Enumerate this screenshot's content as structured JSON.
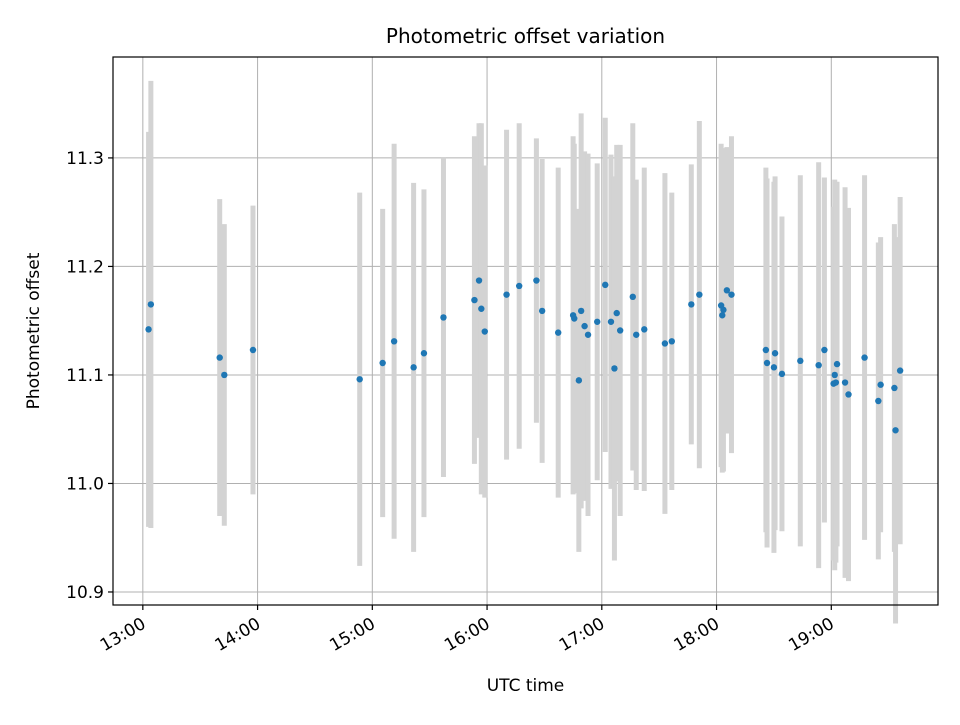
{
  "chart_data": {
    "type": "scatter",
    "title": "Photometric offset variation",
    "xlabel": "UTC time",
    "ylabel": "Photometric offset",
    "x_tick_labels": [
      "13:00",
      "14:00",
      "15:00",
      "16:00",
      "17:00",
      "18:00",
      "19:00"
    ],
    "x_tick_values": [
      13.0,
      14.0,
      15.0,
      16.0,
      17.0,
      18.0,
      19.0
    ],
    "y_tick_labels": [
      "10.9",
      "11.0",
      "11.1",
      "11.2",
      "11.3"
    ],
    "y_tick_values": [
      10.9,
      11.0,
      11.1,
      11.2,
      11.3
    ],
    "xlim": [
      12.74,
      19.93
    ],
    "ylim": [
      10.888,
      11.393
    ],
    "grid": true,
    "colors": {
      "marker": "#1f77b4",
      "errorbar": "#d3d3d3",
      "grid": "#b0b0b0"
    },
    "series": [
      {
        "x": [
          13.05,
          13.07,
          13.67,
          13.71,
          13.96,
          14.89,
          15.09,
          15.19,
          15.36,
          15.45,
          15.62,
          15.89,
          15.93,
          15.95,
          15.98,
          16.17,
          16.28,
          16.43,
          16.48,
          16.62,
          16.75,
          16.76,
          16.8,
          16.82,
          16.85,
          16.88,
          16.96,
          17.03,
          17.08,
          17.11,
          17.13,
          17.16,
          17.27,
          17.3,
          17.37,
          17.55,
          17.61,
          17.78,
          17.85,
          18.04,
          18.05,
          18.06,
          18.09,
          18.13,
          18.43,
          18.44,
          18.5,
          18.51,
          18.57,
          18.73,
          18.89,
          18.94,
          19.02,
          19.03,
          19.04,
          19.05,
          19.12,
          19.15,
          19.29,
          19.41,
          19.43,
          19.55,
          19.56,
          19.6
        ],
        "y": [
          11.142,
          11.165,
          11.116,
          11.1,
          11.123,
          11.096,
          11.111,
          11.131,
          11.107,
          11.12,
          11.153,
          11.169,
          11.187,
          11.161,
          11.14,
          11.174,
          11.182,
          11.187,
          11.159,
          11.139,
          11.155,
          11.152,
          11.095,
          11.159,
          11.145,
          11.137,
          11.149,
          11.183,
          11.149,
          11.106,
          11.157,
          11.141,
          11.172,
          11.137,
          11.142,
          11.129,
          11.131,
          11.165,
          11.174,
          11.164,
          11.155,
          11.16,
          11.178,
          11.174,
          11.123,
          11.111,
          11.107,
          11.12,
          11.101,
          11.113,
          11.109,
          11.123,
          11.092,
          11.1,
          11.093,
          11.11,
          11.093,
          11.082,
          11.116,
          11.076,
          11.091,
          11.088,
          11.049,
          11.104
        ],
        "yerr": [
          0.182,
          0.206,
          0.146,
          0.139,
          0.133,
          0.172,
          0.142,
          0.182,
          0.17,
          0.151,
          0.147,
          0.151,
          0.145,
          0.171,
          0.153,
          0.152,
          0.15,
          0.131,
          0.14,
          0.152,
          0.165,
          0.161,
          0.158,
          0.182,
          0.161,
          0.167,
          0.146,
          0.154,
          0.154,
          0.177,
          0.155,
          0.171,
          0.16,
          0.143,
          0.149,
          0.157,
          0.137,
          0.129,
          0.16,
          0.149,
          0.145,
          0.149,
          0.132,
          0.146,
          0.168,
          0.17,
          0.171,
          0.163,
          0.145,
          0.171,
          0.187,
          0.159,
          0.163,
          0.18,
          0.166,
          0.168,
          0.18,
          0.172,
          0.168,
          0.146,
          0.136,
          0.151,
          0.178,
          0.16
        ]
      }
    ]
  }
}
